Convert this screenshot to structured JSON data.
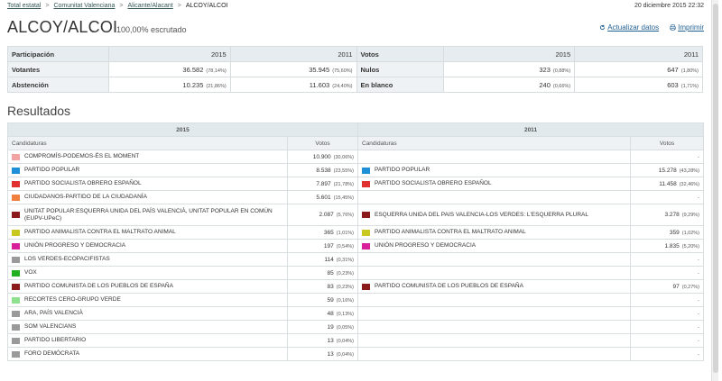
{
  "breadcrumb": {
    "items": [
      "Total estatal",
      "Comunitat Valenciana",
      "Alicante/Alacant"
    ],
    "current": "ALCOY/ALCOI",
    "separator": ">"
  },
  "datetime": "20 diciembre 2015 22:32",
  "header": {
    "title": "ALCOY/ALCOI",
    "scrutiny": "100,00% escrutado",
    "refresh_label": "Actualizar datos",
    "print_label": "Imprimir"
  },
  "participation": {
    "left_header": "Participación",
    "right_header": "Votos",
    "year_a": "2015",
    "year_b": "2011",
    "rows": [
      {
        "label": "Votantes",
        "a": "36.582",
        "a_pct": "(78,14%)",
        "b": "35.945",
        "b_pct": "(75,60%)",
        "label2": "Nulos",
        "c": "323",
        "c_pct": "(0,88%)",
        "d": "647",
        "d_pct": "(1,80%)"
      },
      {
        "label": "Abstención",
        "a": "10.235",
        "a_pct": "(21,86%)",
        "b": "11.603",
        "b_pct": "(24,40%)",
        "label2": "En blanco",
        "c": "240",
        "c_pct": "(0,66%)",
        "d": "603",
        "d_pct": "(1,71%)"
      }
    ]
  },
  "results": {
    "title": "Resultados",
    "year_left": "2015",
    "year_right": "2011",
    "col_cand": "Candidaturas",
    "col_votes": "Votos",
    "dash": "-",
    "rows": [
      {
        "l_name": "COMPROMÍS-PODEMOS-ÉS EL MOMENT",
        "l_color": "#f4a3a3",
        "l_votes": "10.900",
        "l_pct": "(30,06%)",
        "r_name": "",
        "r_color": "",
        "r_votes": "",
        "r_pct": ""
      },
      {
        "l_name": "PARTIDO POPULAR",
        "l_color": "#1e90d8",
        "l_votes": "8.538",
        "l_pct": "(23,55%)",
        "r_name": "PARTIDO POPULAR",
        "r_color": "#1e90d8",
        "r_votes": "15.278",
        "r_pct": "(43,28%)"
      },
      {
        "l_name": "PARTIDO SOCIALISTA OBRERO ESPAÑOL",
        "l_color": "#e03030",
        "l_votes": "7.897",
        "l_pct": "(21,78%)",
        "r_name": "PARTIDO SOCIALISTA OBRERO ESPAÑOL",
        "r_color": "#e03030",
        "r_votes": "11.458",
        "r_pct": "(32,46%)"
      },
      {
        "l_name": "CIUDADANOS-PARTIDO DE LA CIUDADANÍA",
        "l_color": "#f08040",
        "l_votes": "5.601",
        "l_pct": "(15,45%)",
        "r_name": "",
        "r_color": "",
        "r_votes": "",
        "r_pct": ""
      },
      {
        "l_name": "UNITAT POPULAR:ESQUERRA UNIDA DEL PAÍS VALENCIÀ, UNITAT POPULAR EN COMÚN (EUPV-UPeC)",
        "l_color": "#8b1a1a",
        "l_votes": "2.087",
        "l_pct": "(5,76%)",
        "r_name": "ESQUERRA UNIDA DEL PAIS VALENCIA-LOS VERDES: L'ESQUERRA PLURAL",
        "r_color": "#8b1a1a",
        "r_votes": "3.278",
        "r_pct": "(9,29%)",
        "tall": true
      },
      {
        "l_name": "PARTIDO ANIMALISTA CONTRA EL MALTRATO ANIMAL",
        "l_color": "#c8c820",
        "l_votes": "365",
        "l_pct": "(1,01%)",
        "r_name": "PARTIDO ANIMALISTA CONTRA EL MALTRATO ANIMAL",
        "r_color": "#c8c820",
        "r_votes": "359",
        "r_pct": "(1,02%)"
      },
      {
        "l_name": "UNIÓN PROGRESO Y DEMOCRACIA",
        "l_color": "#d8209a",
        "l_votes": "197",
        "l_pct": "(0,54%)",
        "r_name": "UNIÓN PROGRESO Y DEMOCRACIA",
        "r_color": "#d8209a",
        "r_votes": "1.835",
        "r_pct": "(5,20%)"
      },
      {
        "l_name": "LOS VERDES-ECOPACIFISTAS",
        "l_color": "#9a9a9a",
        "l_votes": "114",
        "l_pct": "(0,31%)",
        "r_name": "",
        "r_color": "",
        "r_votes": "",
        "r_pct": ""
      },
      {
        "l_name": "VOX",
        "l_color": "#22b022",
        "l_votes": "85",
        "l_pct": "(0,23%)",
        "r_name": "",
        "r_color": "",
        "r_votes": "",
        "r_pct": ""
      },
      {
        "l_name": "PARTIDO COMUNISTA DE LOS PUEBLOS DE ESPAÑA",
        "l_color": "#8b1a1a",
        "l_votes": "83",
        "l_pct": "(0,23%)",
        "r_name": "PARTIDO COMUNISTA DE LOS PUEBLOS DE ESPAÑA",
        "r_color": "#8b1a1a",
        "r_votes": "97",
        "r_pct": "(0,27%)"
      },
      {
        "l_name": "RECORTES CERO-GRUPO VERDE",
        "l_color": "#8ee08e",
        "l_votes": "59",
        "l_pct": "(0,16%)",
        "r_name": "",
        "r_color": "",
        "r_votes": "",
        "r_pct": ""
      },
      {
        "l_name": "ARA, PAÍS VALENCIÀ",
        "l_color": "#9a9a9a",
        "l_votes": "48",
        "l_pct": "(0,13%)",
        "r_name": "",
        "r_color": "",
        "r_votes": "",
        "r_pct": ""
      },
      {
        "l_name": "SOM VALENCIANS",
        "l_color": "#9a9a9a",
        "l_votes": "19",
        "l_pct": "(0,05%)",
        "r_name": "",
        "r_color": "",
        "r_votes": "",
        "r_pct": ""
      },
      {
        "l_name": "PARTIDO LIBERTARIO",
        "l_color": "#9a9a9a",
        "l_votes": "13",
        "l_pct": "(0,04%)",
        "r_name": "",
        "r_color": "",
        "r_votes": "",
        "r_pct": ""
      },
      {
        "l_name": "FORO DEMÓCRATA",
        "l_color": "#9a9a9a",
        "l_votes": "13",
        "l_pct": "(0,04%)",
        "r_name": "",
        "r_color": "",
        "r_votes": "",
        "r_pct": ""
      }
    ]
  }
}
